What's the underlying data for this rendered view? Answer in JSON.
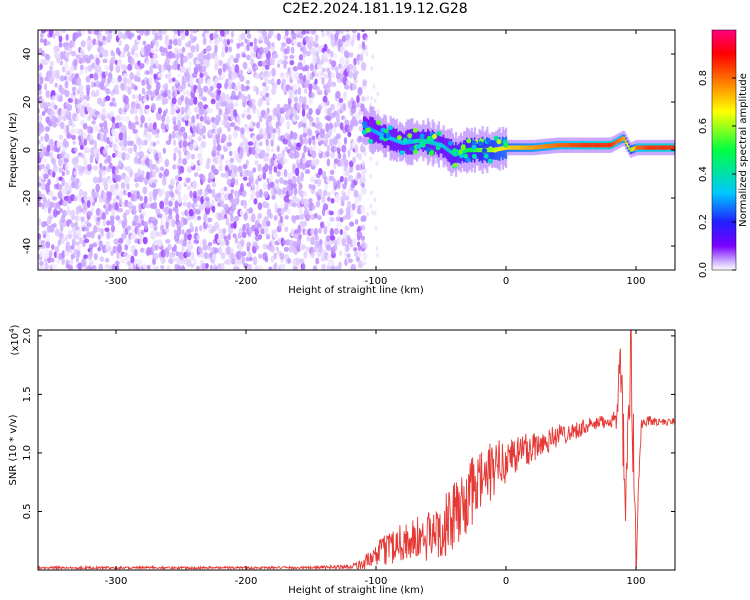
{
  "title": "C2E2.2024.181.19.12.G28",
  "chart_data": [
    {
      "type": "heatmap",
      "xlabel": "Height of straight line (km)",
      "ylabel": "Frequency (Hz)",
      "xlim": [
        -360,
        130
      ],
      "ylim": [
        -50,
        50
      ],
      "xticks": [
        -300,
        -200,
        -100,
        0,
        100
      ],
      "yticks": [
        -40,
        -20,
        0,
        20,
        40
      ],
      "colorbar": {
        "label": "Normalized spectral amplitude",
        "range": [
          0.0,
          1.0
        ],
        "ticks": [
          "0.0",
          "0.2",
          "0.4",
          "0.6",
          "0.8"
        ],
        "colors": [
          "#ffffff",
          "#c7a3ff",
          "#7a00ff",
          "#2020ff",
          "#00c8ff",
          "#00ff40",
          "#ffff00",
          "#ff8000",
          "#ff0000",
          "#ff0080"
        ]
      },
      "description_of_data": "Broadband noise (amplitude ~0.1-0.3) spans all frequencies for heights below about -110 km; from -110 km upward energy concentrates near 0 Hz, strongest (~0.8-1.0) from about 0 km to 130 km.",
      "noise_region_x": [
        -360,
        -110
      ],
      "signal_track": {
        "x": [
          -110,
          -95,
          -80,
          -65,
          -50,
          -40,
          -30,
          -20,
          -10,
          0,
          20,
          40,
          60,
          80,
          90,
          95,
          100,
          110,
          130
        ],
        "y": [
          10,
          6,
          3,
          4,
          2,
          -2,
          0,
          0,
          0,
          1,
          1,
          2,
          2,
          2,
          5,
          0,
          1,
          1,
          1
        ],
        "amplitude": [
          0.4,
          0.45,
          0.45,
          0.5,
          0.45,
          0.5,
          0.55,
          0.6,
          0.65,
          0.7,
          0.75,
          0.8,
          0.85,
          0.85,
          0.75,
          0.6,
          0.8,
          0.85,
          0.85
        ]
      }
    },
    {
      "type": "line",
      "xlabel": "Height of straight line (km)",
      "ylabel": "SNR (10 * v/v)",
      "multiplier_label": "(x10",
      "multiplier_exp": "4",
      "xlim": [
        -360,
        130
      ],
      "ylim": [
        0,
        2.05
      ],
      "xticks": [
        -300,
        -200,
        -100,
        0,
        100
      ],
      "yticks": [
        "0.5",
        "1.0",
        "1.5",
        "2.0"
      ],
      "ytick_values": [
        0.5,
        1.0,
        1.5,
        2.0
      ],
      "color": "#e53935",
      "series": [
        {
          "x": [
            -360,
            -300,
            -250,
            -200,
            -150,
            -120,
            -110,
            -100,
            -90,
            -80,
            -70,
            -60,
            -50,
            -40,
            -30,
            -20,
            -10,
            0,
            10,
            20,
            30,
            40,
            50,
            60,
            70,
            80,
            85,
            88,
            92,
            96,
            100,
            104,
            110,
            120,
            130
          ],
          "values": [
            0.02,
            0.02,
            0.02,
            0.02,
            0.02,
            0.03,
            0.05,
            0.12,
            0.2,
            0.25,
            0.25,
            0.28,
            0.35,
            0.45,
            0.6,
            0.75,
            0.85,
            0.95,
            1.0,
            1.05,
            1.1,
            1.15,
            1.18,
            1.22,
            1.25,
            1.28,
            1.3,
            1.7,
            0.5,
            1.9,
            0.1,
            1.25,
            1.28,
            1.26,
            1.27
          ],
          "noise_amplitude": [
            0.01,
            0.01,
            0.01,
            0.01,
            0.01,
            0.02,
            0.05,
            0.1,
            0.15,
            0.18,
            0.2,
            0.22,
            0.25,
            0.3,
            0.3,
            0.3,
            0.25,
            0.2,
            0.18,
            0.15,
            0.12,
            0.1,
            0.08,
            0.07,
            0.06,
            0.06,
            0.1,
            0.3,
            0.4,
            0.4,
            0.3,
            0.05,
            0.04,
            0.03,
            0.03
          ]
        }
      ]
    }
  ]
}
